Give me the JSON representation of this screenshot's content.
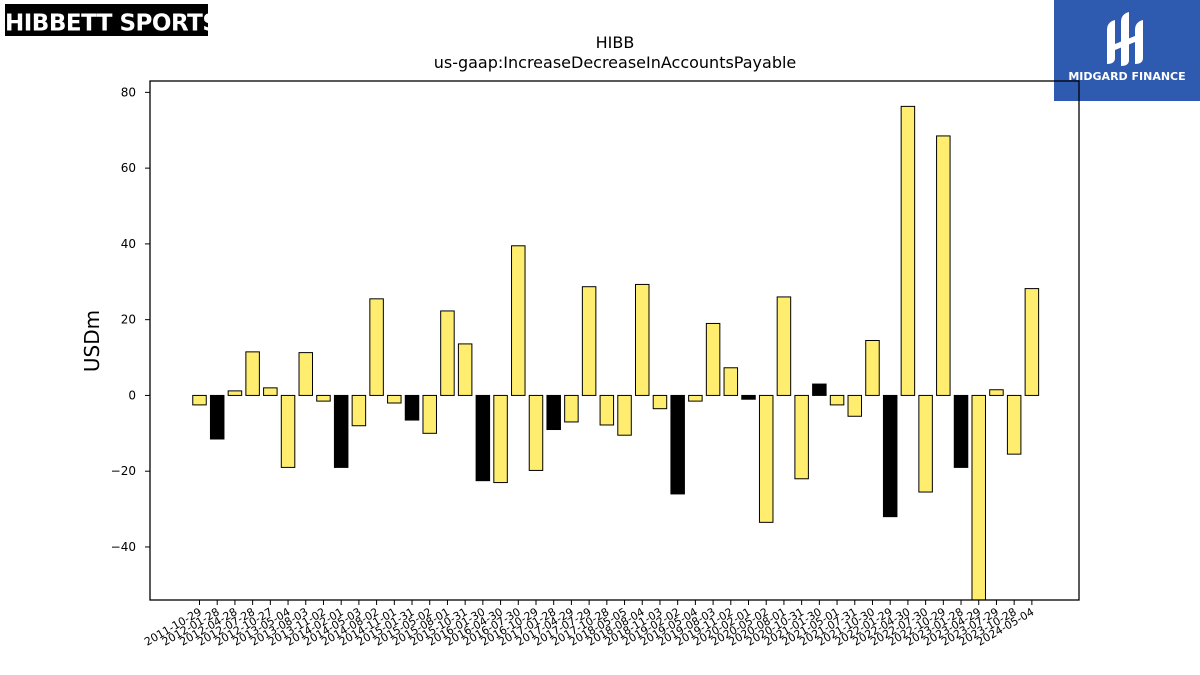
{
  "logos": {
    "left_text": "HIBBETT SPORTS",
    "left_mark": "®",
    "right_text": "MIDGARD FINANCE"
  },
  "chart_data": {
    "type": "bar",
    "title": "HIBB",
    "subtitle": "us-gaap:IncreaseDecreaseInAccountsPayable",
    "ylabel": "USDm",
    "xlabel": "",
    "ylim": [
      -54,
      83
    ],
    "yticks": [
      -40,
      -20,
      0,
      20,
      40,
      60,
      80
    ],
    "grid": false,
    "legend": "none",
    "colors": {
      "positive_highlight": "#ffed6f",
      "negative_highlight": "#000000",
      "edge": "#000000"
    },
    "categories": [
      "2011-10-29",
      "2012-01-28",
      "2012-04-28",
      "2012-07-28",
      "2012-10-27",
      "2013-05-04",
      "2013-08-03",
      "2013-11-02",
      "2014-02-01",
      "2014-05-03",
      "2014-08-02",
      "2014-11-01",
      "2015-01-31",
      "2015-05-02",
      "2015-08-01",
      "2015-10-31",
      "2016-01-30",
      "2016-04-30",
      "2016-07-30",
      "2016-10-29",
      "2017-01-28",
      "2017-04-29",
      "2017-07-29",
      "2017-10-28",
      "2018-05-05",
      "2018-08-04",
      "2018-11-03",
      "2019-02-02",
      "2019-05-04",
      "2019-08-03",
      "2019-11-02",
      "2020-02-01",
      "2020-05-02",
      "2020-08-01",
      "2020-10-31",
      "2021-01-30",
      "2021-05-01",
      "2021-07-31",
      "2021-10-30",
      "2022-01-29",
      "2022-04-30",
      "2022-07-30",
      "2022-10-29",
      "2023-01-28",
      "2023-04-29",
      "2023-07-29",
      "2023-10-28",
      "2024-05-04"
    ],
    "values": [
      -2.5,
      -11.5,
      1.2,
      11.5,
      2.0,
      -19.0,
      11.3,
      -1.5,
      -19.0,
      -8.0,
      25.5,
      -2.0,
      -6.5,
      -10.0,
      22.3,
      13.6,
      -22.5,
      -23.0,
      39.5,
      -19.8,
      -9.0,
      -7.0,
      28.7,
      -7.8,
      -10.5,
      29.3,
      -3.5,
      -26.0,
      -1.5,
      19.0,
      7.3,
      -1.0,
      -33.5,
      26.0,
      -22.0,
      3.0,
      -2.5,
      -5.5,
      14.5,
      -32.0,
      76.3,
      -25.5,
      68.5,
      -19.0,
      -54.0,
      1.5,
      -15.5,
      28.2
    ],
    "bar_colors": [
      "#ffed6f",
      "#000000",
      "#ffed6f",
      "#ffed6f",
      "#ffed6f",
      "#ffed6f",
      "#ffed6f",
      "#ffed6f",
      "#000000",
      "#ffed6f",
      "#ffed6f",
      "#ffed6f",
      "#000000",
      "#ffed6f",
      "#ffed6f",
      "#ffed6f",
      "#000000",
      "#ffed6f",
      "#ffed6f",
      "#ffed6f",
      "#000000",
      "#ffed6f",
      "#ffed6f",
      "#ffed6f",
      "#ffed6f",
      "#ffed6f",
      "#ffed6f",
      "#000000",
      "#ffed6f",
      "#ffed6f",
      "#ffed6f",
      "#000000",
      "#ffed6f",
      "#ffed6f",
      "#ffed6f",
      "#000000",
      "#ffed6f",
      "#ffed6f",
      "#ffed6f",
      "#000000",
      "#ffed6f",
      "#ffed6f",
      "#ffed6f",
      "#000000",
      "#ffed6f",
      "#ffed6f",
      "#ffed6f",
      "#ffed6f"
    ]
  }
}
